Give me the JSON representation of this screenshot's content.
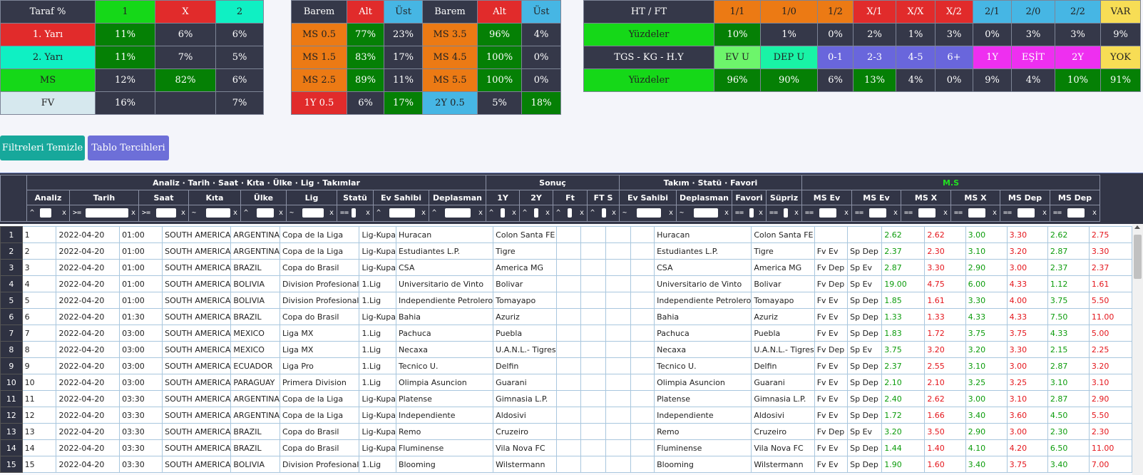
{
  "taraf": {
    "header": [
      "Taraf %",
      "1",
      "X",
      "2"
    ],
    "rows": [
      [
        "1. Yarı",
        "11%",
        "6%",
        "6%"
      ],
      [
        "2. Yarı",
        "11%",
        "7%",
        "5%"
      ],
      [
        "MS",
        "12%",
        "82%",
        "6%"
      ],
      [
        "FV",
        "16%",
        "",
        "7%"
      ]
    ]
  },
  "barem": {
    "header": [
      "Barem",
      "Alt",
      "Üst",
      "Barem",
      "Alt",
      "Üst"
    ],
    "rows": [
      [
        "MS 0.5",
        "77%",
        "23%",
        "MS 3.5",
        "96%",
        "4%"
      ],
      [
        "MS 1.5",
        "83%",
        "17%",
        "MS 4.5",
        "100%",
        "0%"
      ],
      [
        "MS 2.5",
        "89%",
        "11%",
        "MS 5.5",
        "100%",
        "0%"
      ],
      [
        "1Y 0.5",
        "6%",
        "17%",
        "2Y 0.5",
        "5%",
        "18%"
      ]
    ]
  },
  "htft": {
    "header": [
      "HT / FT",
      "1/1",
      "1/0",
      "1/2",
      "X/1",
      "X/X",
      "X/2",
      "2/1",
      "2/0",
      "2/2",
      "VAR"
    ],
    "row1": [
      "Yüzdeler",
      "10%",
      "1%",
      "0%",
      "2%",
      "1%",
      "3%",
      "0%",
      "3%",
      "3%",
      "9%"
    ],
    "header2": [
      "TGS - KG - H.Y",
      "EV U",
      "DEP U",
      "0-1",
      "2-3",
      "4-5",
      "6+",
      "1Y",
      "EŞİT",
      "2Y",
      "YOK"
    ],
    "row2": [
      "Yüzdeler",
      "96%",
      "90%",
      "6%",
      "13%",
      "4%",
      "0%",
      "9%",
      "4%",
      "10%",
      "91%"
    ]
  },
  "buttons": {
    "clear_filters": "Filtreleri Temizle",
    "table_prefs": "Tablo Tercihleri"
  },
  "colors": {
    "btn_clear": "#17a89b",
    "btn_prefs": "#6d6fd8",
    "ms_group": "#22e022"
  },
  "grid": {
    "groups": [
      "Analiz · Tarih · Saat · Kıta · Ülke · Lig · Takımlar",
      "Sonuç",
      "Takım · Statü · Favori",
      "M.S"
    ],
    "columns": [
      "Analiz",
      "Tarih",
      "Saat",
      "Kıta",
      "Ülke",
      "Lig",
      "Statü",
      "Ev Sahibi",
      "Deplasman",
      "1Y",
      "2Y",
      "Ft",
      "FT S",
      "Ev Sahibi",
      "Deplasman",
      "Favori",
      "Süpriz",
      "MS Ev",
      "MS Ev",
      "MS X",
      "MS X",
      "MS Dep",
      "MS Dep"
    ],
    "filter_ops": [
      "^",
      ">=",
      ">=",
      "~",
      "^",
      "~",
      "==",
      "^",
      "^",
      "^",
      "^",
      "^",
      "^",
      "~",
      "~",
      "==",
      "==",
      "==",
      "==",
      "==",
      "==",
      "==",
      "=="
    ],
    "filter_clear": "x",
    "rows": [
      [
        "1",
        "1",
        "2022-04-20",
        "01:00",
        "SOUTH AMERICA",
        "ARGENTINA",
        "Copa de la Liga",
        "Lig-Kupa",
        "Huracan",
        "Colon Santa FE",
        "",
        "",
        "",
        "",
        "Huracan",
        "Colon Santa FE",
        "",
        "",
        "2.62",
        "2.62",
        "3.00",
        "3.30",
        "2.62",
        "2.75"
      ],
      [
        "2",
        "2",
        "2022-04-20",
        "01:00",
        "SOUTH AMERICA",
        "ARGENTINA",
        "Copa de la Liga",
        "Lig-Kupa",
        "Estudiantes L.P.",
        "Tigre",
        "",
        "",
        "",
        "",
        "Estudiantes L.P.",
        "Tigre",
        "Fv Ev",
        "Sp Dep",
        "2.37",
        "2.30",
        "3.10",
        "3.20",
        "2.87",
        "3.30"
      ],
      [
        "3",
        "3",
        "2022-04-20",
        "01:00",
        "SOUTH AMERICA",
        "BRAZIL",
        "Copa do Brasil",
        "Lig-Kupa",
        "CSA",
        "America MG",
        "",
        "",
        "",
        "",
        "CSA",
        "America MG",
        "Fv Dep",
        "Sp Ev",
        "2.87",
        "3.30",
        "2.90",
        "3.00",
        "2.37",
        "2.37"
      ],
      [
        "4",
        "4",
        "2022-04-20",
        "01:00",
        "SOUTH AMERICA",
        "BOLIVIA",
        "Division Profesional",
        "1.Lig",
        "Universitario de Vinto",
        "Bolivar",
        "",
        "",
        "",
        "",
        "Universitario de Vinto",
        "Bolivar",
        "Fv Dep",
        "Sp Ev",
        "19.00",
        "4.75",
        "6.00",
        "4.33",
        "1.12",
        "1.61"
      ],
      [
        "5",
        "5",
        "2022-04-20",
        "01:00",
        "SOUTH AMERICA",
        "BOLIVIA",
        "Division Profesional",
        "1.Lig",
        "Independiente Petrolero",
        "Tomayapo",
        "",
        "",
        "",
        "",
        "Independiente Petrolero",
        "Tomayapo",
        "Fv Ev",
        "Sp Dep",
        "1.85",
        "1.61",
        "3.30",
        "4.00",
        "3.75",
        "5.50"
      ],
      [
        "6",
        "6",
        "2022-04-20",
        "01:30",
        "SOUTH AMERICA",
        "BRAZIL",
        "Copa do Brasil",
        "Lig-Kupa",
        "Bahia",
        "Azuriz",
        "",
        "",
        "",
        "",
        "Bahia",
        "Azuriz",
        "Fv Ev",
        "Sp Dep",
        "1.33",
        "1.33",
        "4.33",
        "4.33",
        "7.50",
        "11.00"
      ],
      [
        "7",
        "7",
        "2022-04-20",
        "03:00",
        "SOUTH AMERICA",
        "MEXICO",
        "Liga MX",
        "1.Lig",
        "Pachuca",
        "Puebla",
        "",
        "",
        "",
        "",
        "Pachuca",
        "Puebla",
        "Fv Ev",
        "Sp Dep",
        "1.83",
        "1.72",
        "3.75",
        "3.75",
        "4.33",
        "5.00"
      ],
      [
        "8",
        "8",
        "2022-04-20",
        "03:00",
        "SOUTH AMERICA",
        "MEXICO",
        "Liga MX",
        "1.Lig",
        "Necaxa",
        "U.A.N.L.- Tigres",
        "",
        "",
        "",
        "",
        "Necaxa",
        "U.A.N.L.- Tigres",
        "Fv Dep",
        "Sp Ev",
        "3.75",
        "3.20",
        "3.20",
        "3.30",
        "2.15",
        "2.25"
      ],
      [
        "9",
        "9",
        "2022-04-20",
        "03:00",
        "SOUTH AMERICA",
        "ECUADOR",
        "Liga Pro",
        "1.Lig",
        "Tecnico U.",
        "Delfin",
        "",
        "",
        "",
        "",
        "Tecnico U.",
        "Delfin",
        "Fv Ev",
        "Sp Dep",
        "2.37",
        "2.55",
        "3.10",
        "3.00",
        "2.87",
        "3.20"
      ],
      [
        "10",
        "10",
        "2022-04-20",
        "03:00",
        "SOUTH AMERICA",
        "PARAGUAY",
        "Primera Division",
        "1.Lig",
        "Olimpia Asuncion",
        "Guarani",
        "",
        "",
        "",
        "",
        "Olimpia Asuncion",
        "Guarani",
        "Fv Ev",
        "Sp Dep",
        "2.10",
        "2.10",
        "3.25",
        "3.25",
        "3.10",
        "3.10"
      ],
      [
        "11",
        "11",
        "2022-04-20",
        "03:30",
        "SOUTH AMERICA",
        "ARGENTINA",
        "Copa de la Liga",
        "Lig-Kupa",
        "Platense",
        "Gimnasia L.P.",
        "",
        "",
        "",
        "",
        "Platense",
        "Gimnasia L.P.",
        "Fv Ev",
        "Sp Dep",
        "2.40",
        "2.62",
        "3.00",
        "3.10",
        "2.87",
        "2.90"
      ],
      [
        "12",
        "12",
        "2022-04-20",
        "03:30",
        "SOUTH AMERICA",
        "ARGENTINA",
        "Copa de la Liga",
        "Lig-Kupa",
        "Independiente",
        "Aldosivi",
        "",
        "",
        "",
        "",
        "Independiente",
        "Aldosivi",
        "Fv Ev",
        "Sp Dep",
        "1.72",
        "1.66",
        "3.40",
        "3.60",
        "4.50",
        "5.50"
      ],
      [
        "13",
        "13",
        "2022-04-20",
        "03:30",
        "SOUTH AMERICA",
        "BRAZIL",
        "Copa do Brasil",
        "Lig-Kupa",
        "Remo",
        "Cruzeiro",
        "",
        "",
        "",
        "",
        "Remo",
        "Cruzeiro",
        "Fv Dep",
        "Sp Ev",
        "3.20",
        "3.50",
        "2.90",
        "3.00",
        "2.30",
        "2.30"
      ],
      [
        "14",
        "14",
        "2022-04-20",
        "03:30",
        "SOUTH AMERICA",
        "BRAZIL",
        "Copa do Brasil",
        "Lig-Kupa",
        "Fluminense",
        "Vila Nova FC",
        "",
        "",
        "",
        "",
        "Fluminense",
        "Vila Nova FC",
        "Fv Ev",
        "Sp Dep",
        "1.44",
        "1.40",
        "4.10",
        "4.20",
        "6.50",
        "11.00"
      ],
      [
        "15",
        "15",
        "2022-04-20",
        "03:30",
        "SOUTH AMERICA",
        "BOLIVIA",
        "Division Profesional",
        "1.Lig",
        "Blooming",
        "Wilstermann",
        "",
        "",
        "",
        "",
        "Blooming",
        "Wilstermann",
        "Fv Ev",
        "Sp Dep",
        "1.90",
        "1.60",
        "3.40",
        "3.75",
        "3.40",
        "7.00"
      ]
    ]
  }
}
